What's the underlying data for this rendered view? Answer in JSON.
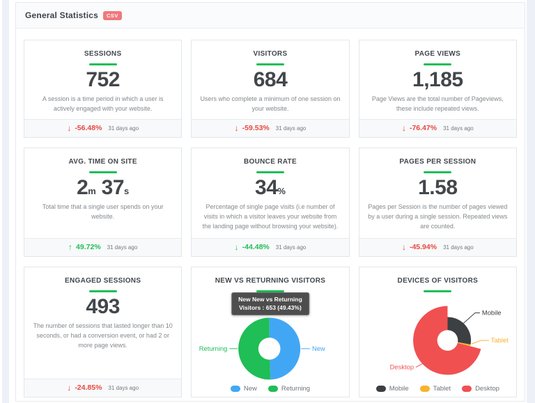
{
  "panel": {
    "title": "General Statistics",
    "csv_badge": "CSV",
    "csv_badge_color": "#f0787c"
  },
  "colors": {
    "accent_green": "#1fbe57",
    "red": "#e8473f",
    "green": "#1fbe57",
    "blue": "#41a7f5",
    "yellow": "#f8b32c",
    "dark": "#3c4043",
    "desktop_red": "#f15051"
  },
  "cards": {
    "sessions": {
      "title": "SESSIONS",
      "value": "752",
      "desc": "A session is a time period in which a user is actively engaged with your website.",
      "arrow": "↓",
      "delta": "-56.48%",
      "delta_color": "#e8473f",
      "ago": "31 days ago"
    },
    "visitors": {
      "title": "VISITORS",
      "value": "684",
      "desc": "Users who complete a minimum of one session on your website.",
      "arrow": "↓",
      "delta": "-59.53%",
      "delta_color": "#e8473f",
      "ago": "31 days ago"
    },
    "page_views": {
      "title": "PAGE VIEWS",
      "value": "1,185",
      "desc": "Page Views are the total number of Pageviews, these include repeated views.",
      "arrow": "↓",
      "delta": "-76.47%",
      "delta_color": "#e8473f",
      "ago": "31 days ago"
    },
    "avg_time": {
      "title": "AVG. TIME ON SITE",
      "p1": "2",
      "u1": "m",
      "p2": "37",
      "u2": "s",
      "desc": "Total time that a single user spends on your website.",
      "arrow": "↑",
      "delta": "49.72%",
      "delta_color": "#1fbe57",
      "ago": "31 days ago"
    },
    "bounce": {
      "title": "BOUNCE RATE",
      "p": "34",
      "u": "%",
      "desc": "Percentage of single page visits (i.e number of visits in which a visitor leaves your website from the landing page without browsing your website).",
      "arrow": "↓",
      "delta": "-44.48%",
      "delta_color": "#1fbe57",
      "ago": "31 days ago"
    },
    "pages_per_session": {
      "title": "PAGES PER SESSION",
      "value": "1.58",
      "desc": "Pages per Session is the number of pages viewed by a user during a single session. Repeated views are counted.",
      "arrow": "↓",
      "delta": "-45.94%",
      "delta_color": "#e8473f",
      "ago": "31 days ago"
    },
    "engaged": {
      "title": "ENGAGED SESSIONS",
      "value": "493",
      "desc": "The number of sessions that lasted longer than 10 seconds, or had a conversion event, or had 2 or more page views.",
      "arrow": "↓",
      "delta": "-24.85%",
      "delta_color": "#e8473f",
      "ago": "31 days ago"
    }
  },
  "chart_data": [
    {
      "type": "pie",
      "title": "NEW VS RETURNING VISITORS",
      "tooltip": {
        "line1": "New New vs Returning",
        "line2": "Visitors : 653 (49.43%)"
      },
      "series": [
        {
          "name": "New",
          "percent": 49.43,
          "value": 653,
          "color": "#41a7f5",
          "outer_radius": 45
        },
        {
          "name": "Returning",
          "percent": 50.57,
          "color": "#1fbe57",
          "outer_radius": 45
        }
      ],
      "legend": [
        "New",
        "Returning"
      ],
      "legend_position": "bottom",
      "hole": true
    },
    {
      "type": "pie",
      "title": "DEVICES OF VISITORS",
      "note": "percentages estimated from slice angles; no data labels shown",
      "series": [
        {
          "name": "Mobile",
          "percent": 27.8,
          "color": "#3c4043",
          "outer_radius": 34
        },
        {
          "name": "Tablet",
          "percent": 1.2,
          "color": "#f8b32c",
          "outer_radius": 34
        },
        {
          "name": "Desktop",
          "percent": 71.0,
          "color": "#f15051",
          "outer_radius": 50
        }
      ],
      "legend": [
        "Mobile",
        "Tablet",
        "Desktop"
      ],
      "legend_position": "bottom",
      "hole": true
    }
  ]
}
